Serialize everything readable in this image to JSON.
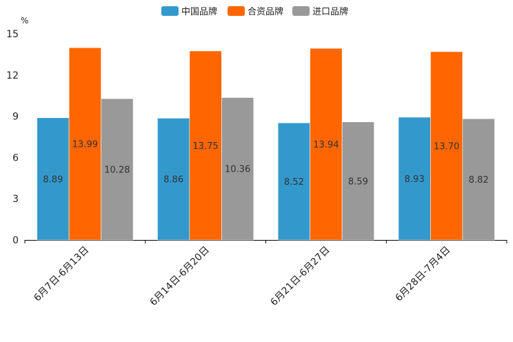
{
  "chart_data": {
    "type": "bar",
    "title": "",
    "unit": "%",
    "xlabel": "",
    "ylabel": "%",
    "ylim": [
      0,
      15
    ],
    "yticks": [
      0,
      3,
      6,
      9,
      12,
      15
    ],
    "grid": false,
    "legend_position": "top-center",
    "categories": [
      "6月7日-6月13日",
      "6月14日-6月20日",
      "6月21日-6月27日",
      "6月28日-7月4日"
    ],
    "series": [
      {
        "name": "中国品牌",
        "color": "#3399cc",
        "values": [
          8.89,
          8.86,
          8.52,
          8.93
        ],
        "labels": [
          "8.89",
          "8.86",
          "8.52",
          "8.93"
        ]
      },
      {
        "name": "合资品牌",
        "color": "#ff6600",
        "values": [
          13.99,
          13.75,
          13.94,
          13.7
        ],
        "labels": [
          "13.99",
          "13.75",
          "13.94",
          "13.70"
        ]
      },
      {
        "name": "进口品牌",
        "color": "#999999",
        "values": [
          10.28,
          10.36,
          8.59,
          8.82
        ],
        "labels": [
          "10.28",
          "10.36",
          "8.59",
          "8.82"
        ]
      }
    ]
  }
}
